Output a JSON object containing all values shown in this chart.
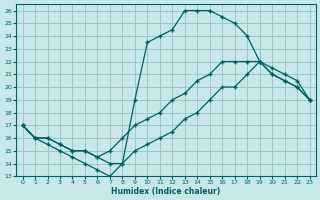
{
  "xlabel": "Humidex (Indice chaleur)",
  "bg_color": "#c8e8e8",
  "grid_color": "#a0c8c8",
  "line_color": "#006060",
  "xlim": [
    -0.5,
    23.5
  ],
  "ylim": [
    13,
    26.5
  ],
  "xticks": [
    0,
    1,
    2,
    3,
    4,
    5,
    6,
    7,
    8,
    9,
    10,
    11,
    12,
    13,
    14,
    15,
    16,
    17,
    18,
    19,
    20,
    21,
    22,
    23
  ],
  "yticks": [
    13,
    14,
    15,
    16,
    17,
    18,
    19,
    20,
    21,
    22,
    23,
    24,
    25,
    26
  ],
  "line1_x": [
    0,
    1,
    2,
    3,
    4,
    5,
    6,
    7,
    8,
    9,
    10,
    11,
    12,
    13,
    14,
    15,
    16,
    17,
    18,
    19,
    20,
    21,
    22,
    23
  ],
  "line1_y": [
    17,
    16,
    15.5,
    15,
    14.5,
    14,
    13.5,
    13,
    14,
    19,
    23.5,
    24,
    24.5,
    26,
    26,
    26,
    25.5,
    25,
    24,
    22,
    21,
    20.5,
    20,
    19
  ],
  "line2_x": [
    0,
    1,
    2,
    3,
    4,
    5,
    6,
    7,
    8,
    9,
    10,
    11,
    12,
    13,
    14,
    15,
    16,
    17,
    18,
    19,
    20,
    21,
    22,
    23
  ],
  "line2_y": [
    17,
    16,
    16,
    15.5,
    15,
    15,
    14.5,
    15,
    16,
    17,
    17.5,
    18,
    19,
    19.5,
    20.5,
    21,
    22,
    22,
    22,
    22,
    21,
    20.5,
    20,
    19
  ],
  "line3_x": [
    0,
    1,
    2,
    3,
    4,
    5,
    6,
    7,
    8,
    9,
    10,
    11,
    12,
    13,
    14,
    15,
    16,
    17,
    18,
    19,
    20,
    21,
    22,
    23
  ],
  "line3_y": [
    17,
    16,
    16,
    15.5,
    15,
    15,
    14.5,
    14,
    14,
    15,
    15.5,
    16,
    16.5,
    17.5,
    18,
    19,
    20,
    20,
    21,
    22,
    21.5,
    21,
    20.5,
    19
  ]
}
